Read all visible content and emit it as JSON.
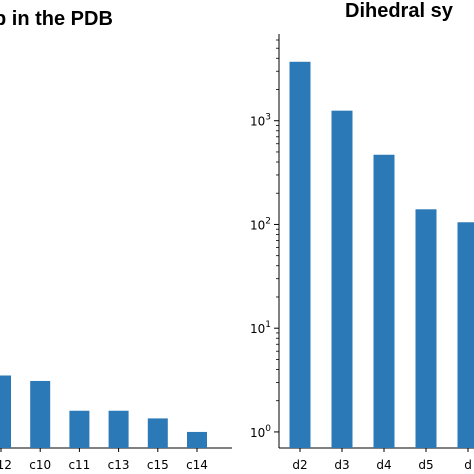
{
  "chart_data": [
    {
      "type": "bar",
      "title": "p in the PDB",
      "categories": [
        "c12",
        "c10",
        "c11",
        "c13",
        "c15",
        "c14"
      ],
      "values": [
        3.5,
        3.1,
        1.6,
        1.6,
        1.35,
        1.0
      ],
      "yscale": "log",
      "ylim": [
        0.7,
        6000
      ],
      "color": "#2b79b7",
      "grid": false,
      "legend": "none"
    },
    {
      "type": "bar",
      "title": "Dihedral sy",
      "categories": [
        "d2",
        "d3",
        "d4",
        "d5",
        "d"
      ],
      "values": [
        3700,
        1250,
        470,
        140,
        105
      ],
      "yscale": "log",
      "ylim": [
        0.7,
        6000
      ],
      "yticks": [
        {
          "value": 1,
          "base": "10",
          "exp": "0"
        },
        {
          "value": 10,
          "base": "10",
          "exp": "1"
        },
        {
          "value": 100,
          "base": "10",
          "exp": "2"
        },
        {
          "value": 1000,
          "base": "10",
          "exp": "3"
        }
      ],
      "color": "#2b79b7",
      "grid": false,
      "legend": "none"
    }
  ]
}
